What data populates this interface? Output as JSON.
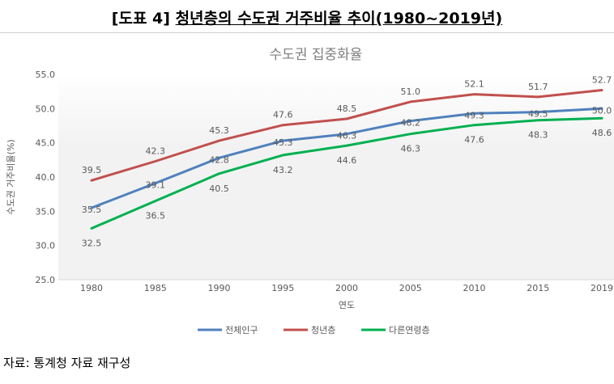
{
  "figure": {
    "label": "[도표 4]",
    "title": "청년층의 수도권 거주비율 추이(1980~2019년)"
  },
  "source": "자료: 통계청 자료 재구성",
  "chart_data": {
    "type": "line",
    "title": "수도권 집중화율",
    "xlabel": "연도",
    "ylabel": "수도권 거주비율(%)",
    "ylim": [
      25.0,
      55.0
    ],
    "y_ticks": [
      25.0,
      30.0,
      35.0,
      40.0,
      45.0,
      50.0,
      55.0
    ],
    "y_tick_labels": [
      "25.0",
      "30.0",
      "35.0",
      "40.0",
      "45.0",
      "50.0",
      "55.0"
    ],
    "categories": [
      "1980",
      "1985",
      "1990",
      "1995",
      "2000",
      "2005",
      "2010",
      "2015",
      "2019"
    ],
    "grid": false,
    "legend": "bottom",
    "series": [
      {
        "name": "전체인구",
        "color": "#4f81bd",
        "values": [
          35.5,
          39.1,
          42.8,
          45.3,
          46.3,
          48.2,
          49.3,
          49.5,
          50.0
        ],
        "labels": [
          "35.5",
          "39.1",
          "42.8",
          "45.3",
          "46.3",
          "48.2",
          "49.3",
          "49.5",
          "50.0"
        ]
      },
      {
        "name": "청년층",
        "color": "#c0504d",
        "values": [
          39.5,
          42.3,
          45.3,
          47.6,
          48.5,
          51.0,
          52.1,
          51.7,
          52.7
        ],
        "labels": [
          "39.5",
          "42.3",
          "45.3",
          "47.6",
          "48.5",
          "51.0",
          "52.1",
          "51.7",
          "52.7"
        ]
      },
      {
        "name": "다른연령층",
        "color": "#00b050",
        "values": [
          32.5,
          36.5,
          40.5,
          43.2,
          44.6,
          46.3,
          47.6,
          48.3,
          48.6
        ],
        "labels": [
          "32.5",
          "36.5",
          "40.5",
          "43.2",
          "44.6",
          "46.3",
          "47.6",
          "48.3",
          "48.6"
        ]
      }
    ]
  }
}
